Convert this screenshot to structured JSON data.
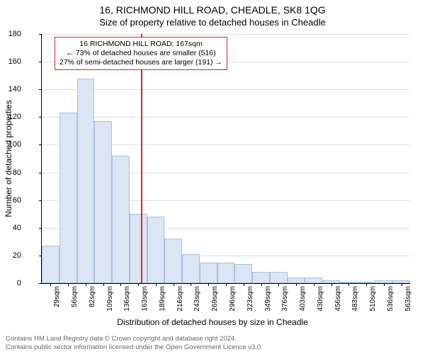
{
  "title": "16, RICHMOND HILL ROAD, CHEADLE, SK8 1QG",
  "subtitle": "Size of property relative to detached houses in Cheadle",
  "ylabel": "Number of detached properties",
  "xlabel": "Distribution of detached houses by size in Cheadle",
  "chart": {
    "type": "histogram",
    "ylim": [
      0,
      180
    ],
    "ytick_step": 20,
    "background_color": "#ffffff",
    "grid_color": "#e0e0e0",
    "bar_fill": "#dbe5f3",
    "bar_border": "#a8bfdf",
    "marker_color": "#d62728",
    "x_labels": [
      "29sqm",
      "56sqm",
      "82sqm",
      "109sqm",
      "136sqm",
      "163sqm",
      "189sqm",
      "216sqm",
      "243sqm",
      "269sqm",
      "296sqm",
      "323sqm",
      "349sqm",
      "376sqm",
      "403sqm",
      "430sqm",
      "456sqm",
      "483sqm",
      "510sqm",
      "536sqm",
      "563sqm"
    ],
    "values": [
      27,
      123,
      148,
      117,
      92,
      50,
      48,
      32,
      21,
      15,
      15,
      14,
      8,
      8,
      4,
      4,
      2,
      0,
      0,
      2,
      2
    ],
    "marker_value_sqm": 167,
    "annotation": {
      "line1": "16 RICHMOND HILL ROAD: 167sqm",
      "line2": "← 73% of detached houses are smaller (516)",
      "line3": "27% of semi-detached houses are larger (191) →"
    }
  },
  "footer": {
    "line1": "Contains HM Land Registry data © Crown copyright and database right 2024.",
    "line2": "Contains public sector information licensed under the Open Government Licence v3.0."
  }
}
